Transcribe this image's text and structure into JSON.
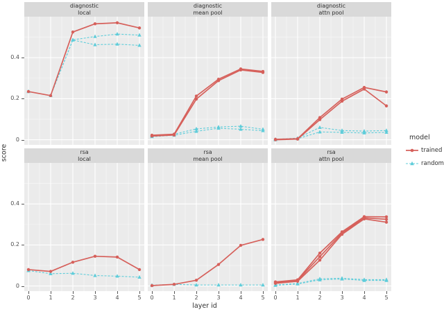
{
  "chart_data": {
    "type": "line",
    "title": "",
    "xlabel": "layer id",
    "ylabel": "score",
    "x": [
      0,
      1,
      2,
      3,
      4,
      5
    ],
    "x_ticklabels": [
      "0",
      "1",
      "2",
      "3",
      "4",
      "5"
    ],
    "yticks": [
      0,
      0.2,
      0.4
    ],
    "y_ticklabels": [
      "0",
      "0.2",
      "0.4"
    ],
    "y_minor_ticks": [
      0.1,
      0.3,
      0.5
    ],
    "x_minor_ticks": [
      0.5,
      1.5,
      2.5,
      3.5,
      4.5
    ],
    "ylim": [
      -0.025,
      0.6
    ],
    "grid": true,
    "legend": {
      "title": "model",
      "position": "right",
      "entries": [
        {
          "label": "trained",
          "color": "#d6605b",
          "linestyle": "solid",
          "marker": "circle"
        },
        {
          "label": "random",
          "color": "#5fcdda",
          "linestyle": "dashed",
          "marker": "triangle"
        }
      ]
    },
    "facet_rows": [
      "diagnostic",
      "rsa"
    ],
    "facet_cols": [
      "local",
      "mean pool",
      "attn pool"
    ],
    "facets": [
      {
        "strip": [
          "diagnostic",
          "local"
        ],
        "series": [
          {
            "model": "random",
            "values": [
              0.235,
              0.215,
              0.487,
              0.503,
              0.515,
              0.51
            ]
          },
          {
            "model": "random",
            "values": [
              0.235,
              0.215,
              0.486,
              0.463,
              0.466,
              0.46
            ]
          },
          {
            "model": "trained",
            "values": [
              0.235,
              0.215,
              0.525,
              0.565,
              0.57,
              0.545
            ]
          }
        ]
      },
      {
        "strip": [
          "diagnostic",
          "mean pool"
        ],
        "series": [
          {
            "model": "random",
            "values": [
              0.02,
              0.027,
              0.053,
              0.062,
              0.066,
              0.051
            ]
          },
          {
            "model": "random",
            "values": [
              0.015,
              0.022,
              0.041,
              0.056,
              0.051,
              0.044
            ]
          },
          {
            "model": "trained",
            "values": [
              0.022,
              0.027,
              0.213,
              0.295,
              0.345,
              0.333
            ]
          },
          {
            "model": "trained",
            "values": [
              0.018,
              0.023,
              0.198,
              0.288,
              0.34,
              0.328
            ]
          }
        ]
      },
      {
        "strip": [
          "diagnostic",
          "attn pool"
        ],
        "series": [
          {
            "model": "random",
            "values": [
              0.002,
              0.008,
              0.06,
              0.045,
              0.042,
              0.045
            ]
          },
          {
            "model": "random",
            "values": [
              0.0,
              0.005,
              0.038,
              0.036,
              0.033,
              0.036
            ]
          },
          {
            "model": "trained",
            "values": [
              0.002,
              0.005,
              0.108,
              0.198,
              0.255,
              0.233
            ]
          },
          {
            "model": "trained",
            "values": [
              0.0,
              0.003,
              0.098,
              0.188,
              0.247,
              0.165
            ]
          }
        ]
      },
      {
        "strip": [
          "rsa",
          "local"
        ],
        "series": [
          {
            "model": "random",
            "values": [
              0.075,
              0.06,
              0.062,
              0.051,
              0.048,
              0.043
            ]
          },
          {
            "model": "trained",
            "values": [
              0.08,
              0.071,
              0.116,
              0.145,
              0.141,
              0.08
            ]
          }
        ]
      },
      {
        "strip": [
          "rsa",
          "mean pool"
        ],
        "series": [
          {
            "model": "random",
            "values": [
              0.004,
              0.008,
              0.005,
              0.005,
              0.005,
              0.005
            ]
          },
          {
            "model": "trained",
            "values": [
              0.002,
              0.008,
              0.028,
              0.105,
              0.198,
              0.227
            ]
          }
        ]
      },
      {
        "strip": [
          "rsa",
          "attn pool"
        ],
        "series": [
          {
            "model": "random",
            "values": [
              0.005,
              0.012,
              0.035,
              0.038,
              0.031,
              0.031
            ]
          },
          {
            "model": "random",
            "values": [
              0.003,
              0.01,
              0.03,
              0.034,
              0.027,
              0.027
            ]
          },
          {
            "model": "trained",
            "values": [
              0.02,
              0.03,
              0.16,
              0.264,
              0.338,
              0.337
            ]
          },
          {
            "model": "trained",
            "values": [
              0.016,
              0.027,
              0.143,
              0.258,
              0.332,
              0.325
            ]
          },
          {
            "model": "trained",
            "values": [
              0.013,
              0.023,
              0.126,
              0.252,
              0.327,
              0.311
            ]
          }
        ]
      }
    ],
    "style": {
      "panel_bg": "#ebebeb",
      "strip_bg": "#d9d9d9",
      "grid_major": "#ffffff",
      "grid_minor": "#ffffff",
      "trained_color": "#d6605b",
      "random_color": "#5fcdda",
      "text_color": "#303030",
      "tick_text_color": "#4d4d4d"
    }
  }
}
